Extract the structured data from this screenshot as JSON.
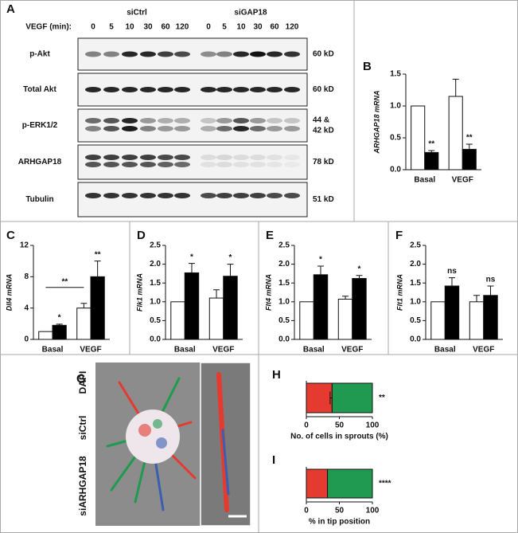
{
  "blot": {
    "panel": "A",
    "header": "VEGF (min):",
    "groups": [
      "siCtrl",
      "siGAP18"
    ],
    "lanes": [
      "0",
      "5",
      "10",
      "30",
      "60",
      "120",
      "0",
      "5",
      "10",
      "30",
      "60",
      "120"
    ],
    "rows": [
      {
        "label": "p-Akt",
        "size": [
          "60 kD"
        ]
      },
      {
        "label": "Total Akt",
        "size": [
          "60 kD"
        ]
      },
      {
        "label": "p-ERK1/2",
        "size": [
          "44 &",
          "42 kD"
        ]
      },
      {
        "label": "ARHGAP18",
        "size": [
          "78 kD"
        ]
      },
      {
        "label": "Tubulin",
        "size": [
          "51 kD"
        ]
      }
    ]
  },
  "chart_data": [
    {
      "panel": "B",
      "type": "bar",
      "y_label": "ARHGAP18 mRNA",
      "categories": [
        "Basal",
        "VEGF"
      ],
      "series": [
        {
          "color": "#ffffff",
          "values": [
            1.0,
            1.15
          ],
          "errors": [
            null,
            0.27
          ]
        },
        {
          "color": "#000000",
          "values": [
            0.27,
            0.32
          ],
          "errors": [
            0.03,
            0.08
          ],
          "annotations": [
            "**",
            "**"
          ]
        }
      ],
      "ylim": [
        0,
        1.5
      ],
      "yticks": [
        {
          "value": 0,
          "label": "0.0"
        },
        {
          "value": 0.5,
          "label": "0.5"
        },
        {
          "value": 1,
          "label": "1.0"
        },
        {
          "value": 1.5,
          "label": "1.5"
        }
      ]
    },
    {
      "panel": "C",
      "type": "bar",
      "y_label": "Dll4 mRNA",
      "categories": [
        "Basal",
        "VEGF"
      ],
      "series": [
        {
          "color": "#ffffff",
          "values": [
            1,
            4
          ],
          "errors": [
            null,
            0.6
          ]
        },
        {
          "color": "#000000",
          "values": [
            1.8,
            8
          ],
          "errors": [
            0.15,
            2
          ],
          "annotations": [
            "*",
            "**"
          ]
        }
      ],
      "bracket_label": "**",
      "ylim": [
        0,
        12
      ],
      "yticks": [
        0,
        4,
        8,
        12
      ]
    },
    {
      "panel": "D",
      "type": "bar",
      "y_label": "Flk1 mRNA",
      "categories": [
        "Basal",
        "VEGF"
      ],
      "series": [
        {
          "color": "#ffffff",
          "values": [
            1,
            1.1
          ],
          "errors": [
            null,
            0.22
          ]
        },
        {
          "color": "#000000",
          "values": [
            1.77,
            1.68
          ],
          "errors": [
            0.25,
            0.32
          ],
          "annotations": [
            "*",
            "*"
          ]
        }
      ],
      "ylim": [
        0,
        2.5
      ],
      "yticks": [
        {
          "value": 0,
          "label": "0.0"
        },
        {
          "value": 0.5,
          "label": "0.5"
        },
        {
          "value": 1,
          "label": "1.0"
        },
        {
          "value": 1.5,
          "label": "1.5"
        },
        {
          "value": 2,
          "label": "2.0"
        },
        {
          "value": 2.5,
          "label": "2.5"
        }
      ]
    },
    {
      "panel": "E",
      "type": "bar",
      "y_label": "Flt4 mRNA",
      "categories": [
        "Basal",
        "VEGF"
      ],
      "series": [
        {
          "color": "#ffffff",
          "values": [
            1,
            1.07
          ],
          "errors": [
            null,
            0.08
          ]
        },
        {
          "color": "#000000",
          "values": [
            1.72,
            1.62
          ],
          "errors": [
            0.23,
            0.08
          ],
          "annotations": [
            "*",
            "*"
          ]
        }
      ],
      "ylim": [
        0,
        2.5
      ],
      "yticks": [
        {
          "value": 0,
          "label": "0.0"
        },
        {
          "value": 0.5,
          "label": "0.5"
        },
        {
          "value": 1,
          "label": "1.0"
        },
        {
          "value": 1.5,
          "label": "1.5"
        },
        {
          "value": 2,
          "label": "2.0"
        },
        {
          "value": 2.5,
          "label": "2.5"
        }
      ]
    },
    {
      "panel": "F",
      "type": "bar",
      "y_label": "Flt1 mRNA",
      "categories": [
        "Basal",
        "VEGF"
      ],
      "series": [
        {
          "color": "#ffffff",
          "values": [
            1,
            1.0
          ],
          "errors": [
            null,
            0.17
          ]
        },
        {
          "color": "#000000",
          "values": [
            1.42,
            1.17
          ],
          "errors": [
            0.22,
            0.25
          ],
          "annotations": [
            "ns",
            "ns"
          ]
        }
      ],
      "ylim": [
        0,
        2.5
      ],
      "yticks": [
        {
          "value": 0,
          "label": "0.0"
        },
        {
          "value": 0.5,
          "label": "0.5"
        },
        {
          "value": 1,
          "label": "1.0"
        },
        {
          "value": 1.5,
          "label": "1.5"
        },
        {
          "value": 2,
          "label": "2.0"
        },
        {
          "value": 2.5,
          "label": "2.5"
        }
      ]
    },
    {
      "panel": "H",
      "type": "hbar",
      "stacked": true,
      "x_label": "No. of cells in sprouts (%)",
      "annotation": "**",
      "series": [
        {
          "color": "#e53a2f",
          "values": [
            39
          ],
          "errors": [
            3
          ]
        },
        {
          "color": "#1f9a50",
          "values": [
            61
          ]
        }
      ],
      "xlim": [
        0,
        100
      ],
      "xticks": [
        0,
        50,
        100
      ]
    },
    {
      "panel": "I",
      "type": "hbar",
      "stacked": true,
      "x_label": "% in tip position",
      "annotation": "****",
      "series": [
        {
          "color": "#e53a2f",
          "values": [
            32
          ]
        },
        {
          "color": "#1f9a50",
          "values": [
            68
          ]
        }
      ],
      "xlim": [
        0,
        100
      ],
      "xticks": [
        0,
        50,
        100
      ]
    }
  ],
  "image": {
    "panel": "G",
    "labels": [
      {
        "text": "DAPI",
        "color": "#3b5fb0"
      },
      {
        "text": "siCtrl",
        "color": "#e53a2f"
      },
      {
        "text": "siARHGAP18",
        "color": "#1f9a50"
      }
    ]
  }
}
